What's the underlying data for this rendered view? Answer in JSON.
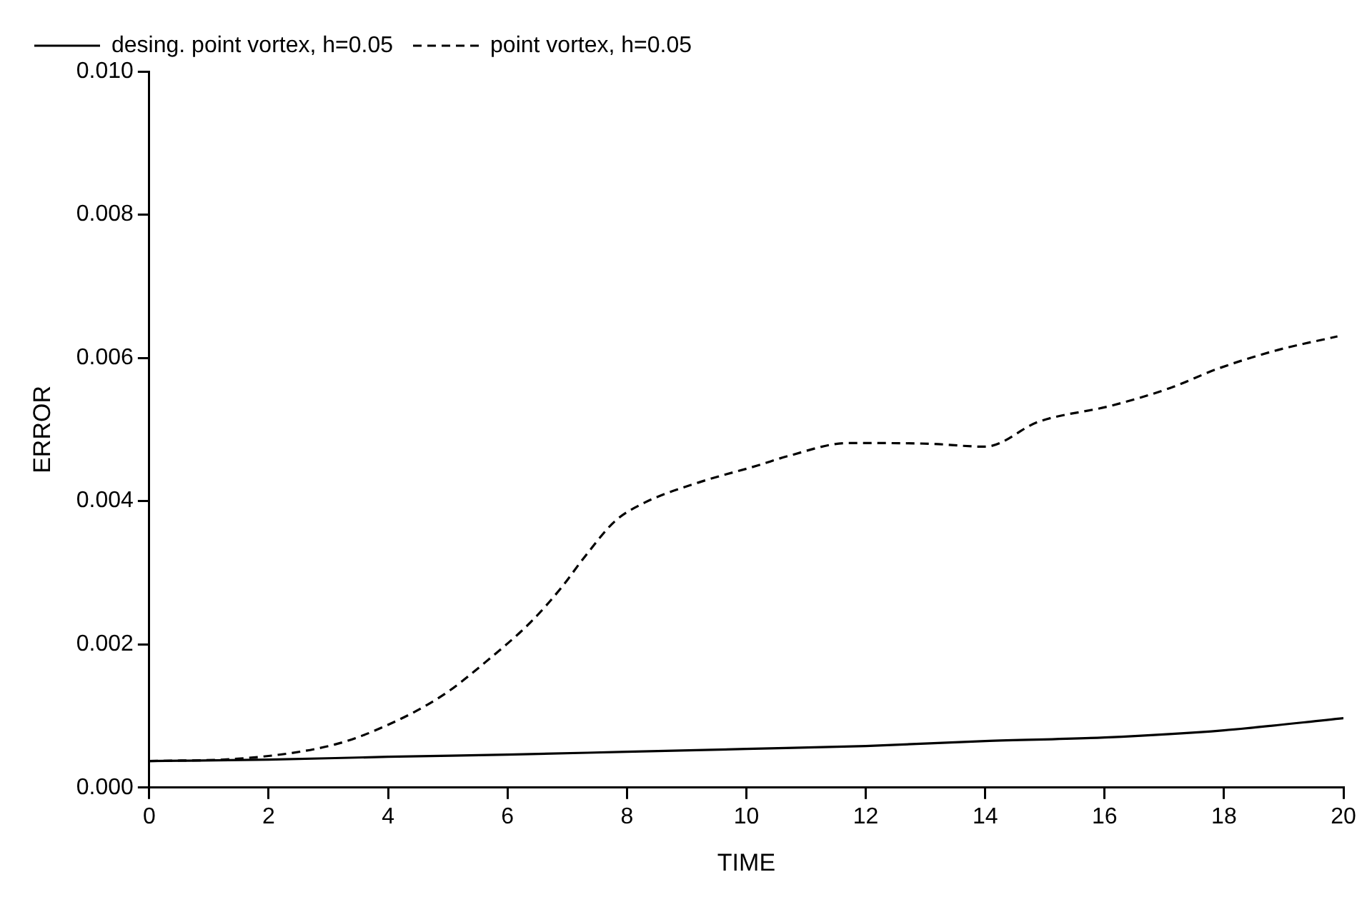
{
  "chart_data": {
    "type": "line",
    "xlabel": "TIME",
    "ylabel": "ERROR",
    "xlim": [
      0,
      20
    ],
    "xticks": [
      0,
      2,
      4,
      6,
      8,
      10,
      12,
      14,
      16,
      18,
      20
    ],
    "ylim": [
      0,
      0.01
    ],
    "yticks": [
      {
        "value": 0,
        "label": "0.000"
      },
      {
        "value": 0.002,
        "label": "0.002"
      },
      {
        "value": 0.004,
        "label": "0.004"
      },
      {
        "value": 0.006,
        "label": "0.006"
      },
      {
        "value": 0.008,
        "label": "0.008"
      },
      {
        "value": 0.01,
        "label": "0.010"
      }
    ],
    "grid": false,
    "legend": "top left",
    "marker": "none",
    "series": [
      {
        "name": "desing. point vortex, h=0.05",
        "color": "#000000",
        "line_style": "solid",
        "x": [
          0,
          2,
          4,
          6,
          8,
          10,
          12,
          14,
          16,
          18,
          20
        ],
        "values": [
          0.00037,
          0.00039,
          0.00043,
          0.00046,
          0.0005,
          0.00054,
          0.00058,
          0.00065,
          0.0007,
          0.0008,
          0.00097
        ]
      },
      {
        "name": "point vortex, h=0.05",
        "color": "#000000",
        "line_style": "dashed",
        "x": [
          0,
          1.6,
          3.1,
          3.9,
          4.9,
          5.7,
          6.4,
          6.9,
          7.3,
          7.8,
          8.3,
          9.2,
          10.2,
          10.7,
          11.7,
          12.2,
          13.1,
          14,
          14.9,
          16.1,
          17.1,
          17.9,
          18.9,
          19.9
        ],
        "values": [
          0.00037,
          0.00041,
          0.0006,
          0.00084,
          0.00128,
          0.0018,
          0.00232,
          0.00279,
          0.00323,
          0.00372,
          0.00398,
          0.00426,
          0.0045,
          0.00463,
          0.00481,
          0.00481,
          0.0048,
          0.00476,
          0.00511,
          0.00533,
          0.00558,
          0.00585,
          0.00611,
          0.0063
        ]
      }
    ]
  }
}
